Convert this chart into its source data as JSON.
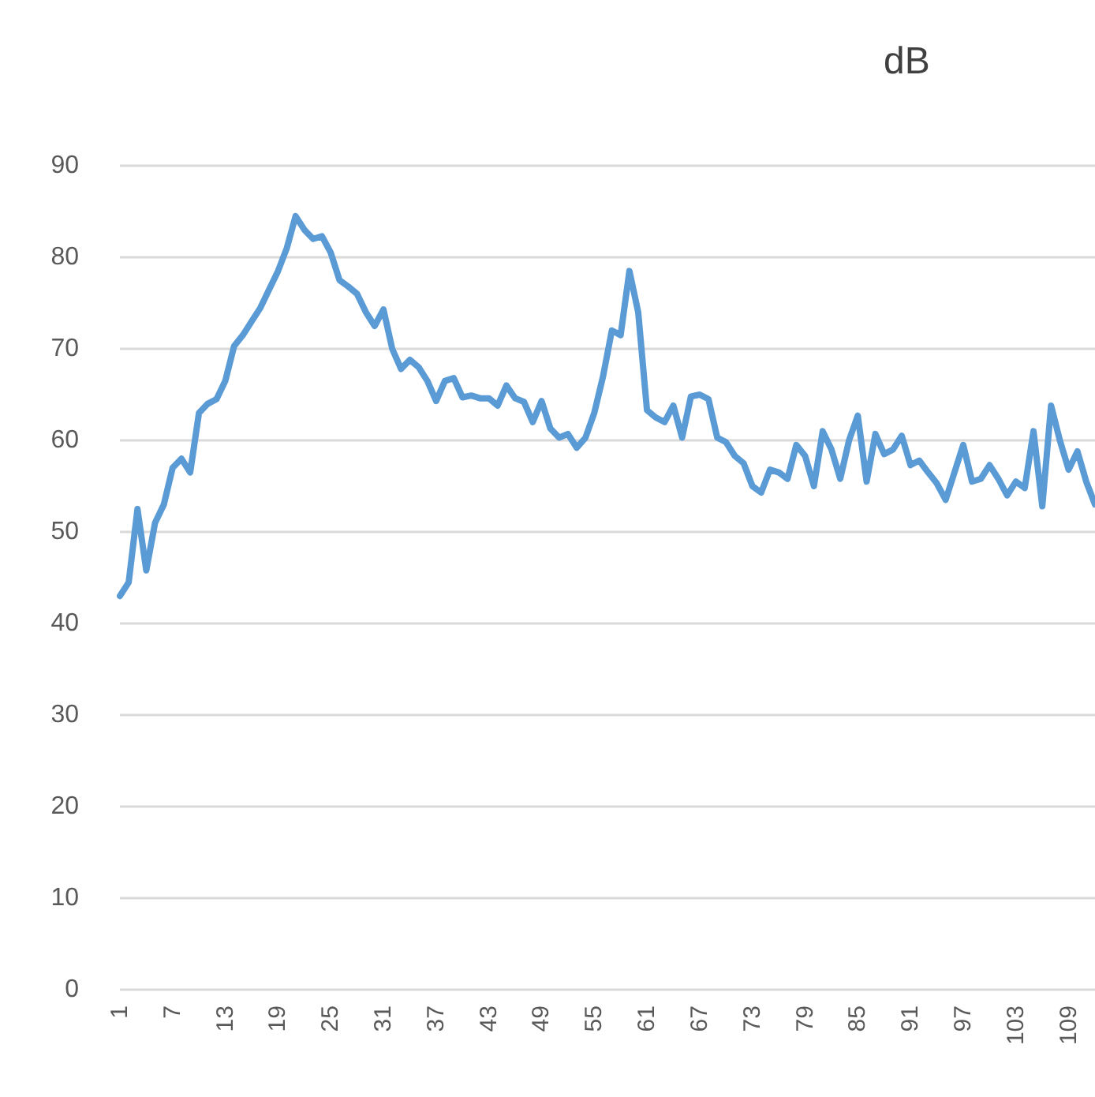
{
  "chart_data": {
    "type": "line",
    "title": "dB",
    "categories": [
      "1",
      null,
      null,
      null,
      null,
      null,
      "7",
      null,
      null,
      null,
      null,
      null,
      "13",
      null,
      null,
      null,
      null,
      null,
      "19",
      null,
      null,
      null,
      null,
      null,
      "25",
      null,
      null,
      null,
      null,
      null,
      "31",
      null,
      null,
      null,
      null,
      null,
      "37",
      null,
      null,
      null,
      null,
      null,
      "43",
      null,
      null,
      null,
      null,
      null,
      "49",
      null,
      null,
      null,
      null,
      null,
      "55",
      null,
      null,
      null,
      null,
      null,
      "61",
      null,
      null,
      null,
      null,
      null,
      "67",
      null,
      null,
      null,
      null,
      null,
      "73",
      null,
      null,
      null,
      null,
      null,
      "79",
      null,
      null,
      null,
      null,
      null,
      "85",
      null,
      null,
      null,
      null,
      null,
      "91",
      null,
      null,
      null,
      null,
      null,
      "97",
      null,
      null,
      null,
      null,
      null,
      "103",
      null,
      null,
      null,
      null,
      null,
      "109",
      null,
      null,
      null
    ],
    "series": [
      {
        "color": "#5b9bd5",
        "values": [
          43,
          44.5,
          52.5,
          45.8,
          51,
          53,
          57,
          58,
          56.5,
          63,
          64,
          64.5,
          66.5,
          70.3,
          71.5,
          73,
          74.5,
          76.5,
          78.5,
          81,
          84.5,
          83,
          82,
          82.3,
          80.5,
          77.5,
          76.8,
          76,
          74,
          72.5,
          74.3,
          70,
          67.8,
          68.8,
          68,
          66.5,
          64.3,
          66.5,
          66.8,
          64.7,
          64.9,
          64.6,
          64.6,
          63.8,
          66,
          64.6,
          64.2,
          62,
          64.3,
          61.3,
          60.3,
          60.7,
          59.2,
          60.3,
          63,
          67,
          72,
          71.5,
          78.5,
          74,
          63.3,
          62.5,
          62,
          63.8,
          60.3,
          64.8,
          65,
          64.5,
          60.3,
          59.8,
          58.3,
          57.5,
          55,
          54.3,
          56.8,
          56.5,
          55.8,
          59.5,
          58.3,
          55,
          61,
          59,
          55.8,
          60,
          62.7,
          55.5,
          60.7,
          58.5,
          59,
          60.5,
          57.3,
          57.8,
          56.5,
          55.3,
          53.5,
          56.5,
          59.5,
          55.5,
          55.8,
          57.3,
          55.8,
          54,
          55.5,
          54.8,
          61,
          52.8,
          63.8,
          60,
          56.8,
          58.8,
          55.5,
          53
        ]
      }
    ],
    "ylim": [
      0,
      90
    ],
    "yticks": [
      0,
      10,
      20,
      30,
      40,
      50,
      60,
      70,
      80,
      90
    ],
    "grid": "y",
    "marker": "none",
    "line_style": "solid"
  }
}
